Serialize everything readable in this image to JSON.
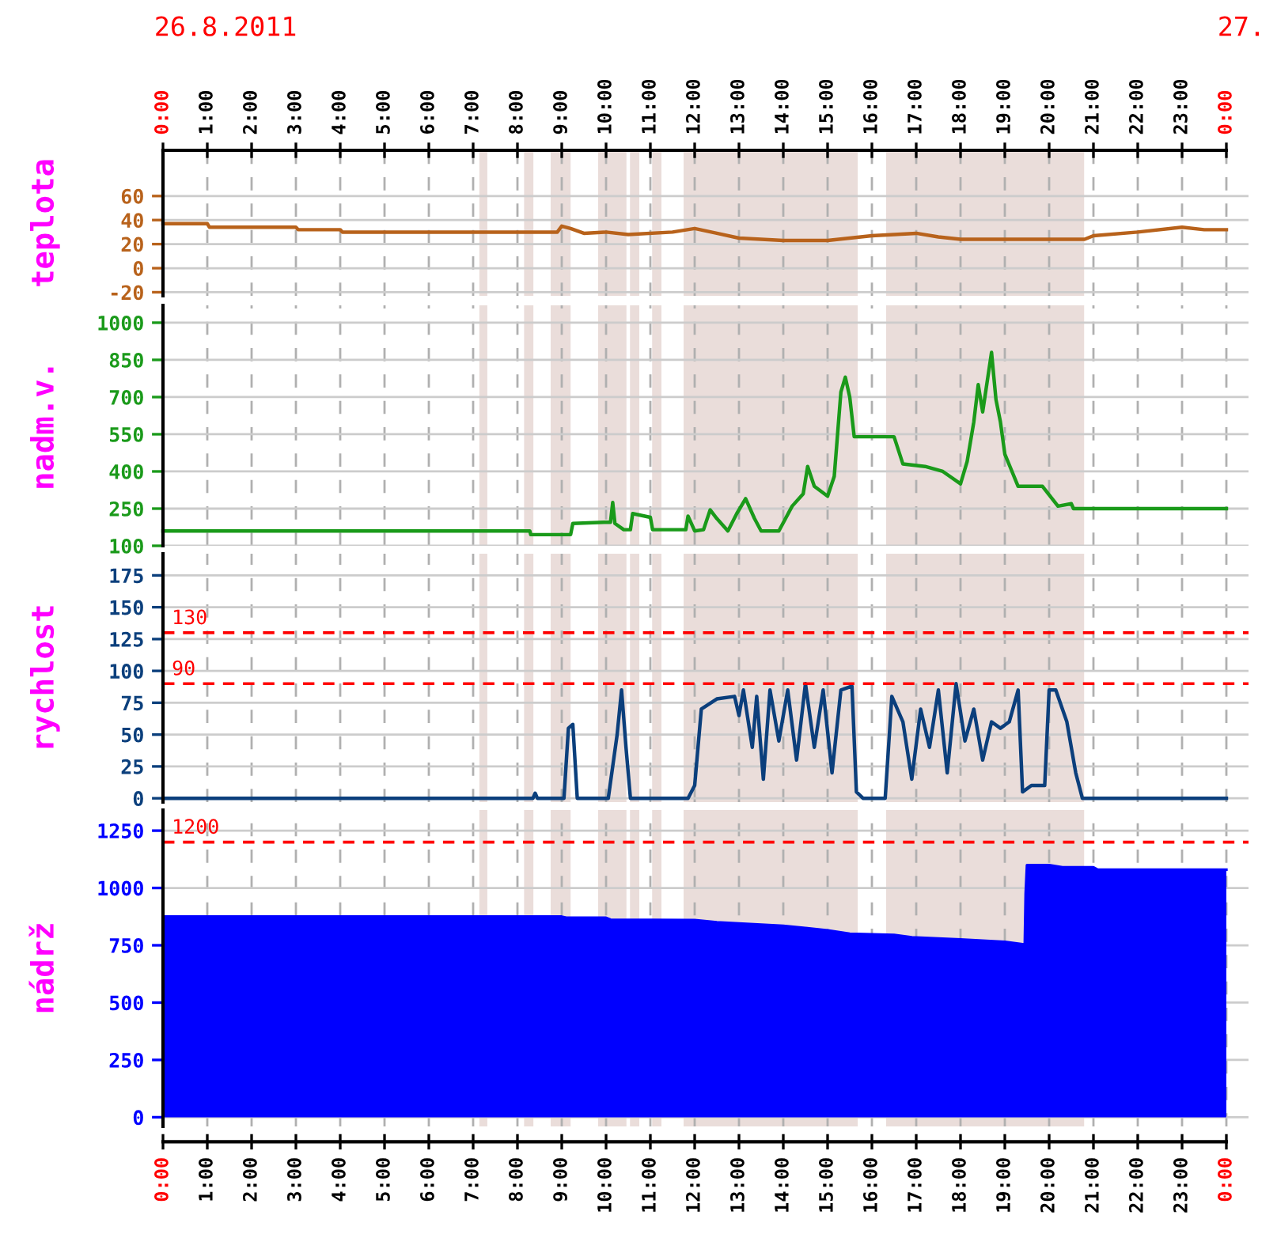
{
  "chart_data": [
    {
      "type": "line",
      "ylabel": "teplota",
      "annotations": [
        "26.8.2011",
        "27."
      ],
      "grid": true,
      "tick_labels": "y",
      "xlim": [
        0,
        24.5
      ],
      "xticks": [
        0,
        1,
        2,
        3,
        4,
        5,
        6,
        7,
        8,
        9,
        10,
        11,
        12,
        13,
        14,
        15,
        16,
        17,
        18,
        19,
        20,
        21,
        22,
        23,
        24
      ],
      "x2lim": [
        0,
        24.5
      ],
      "x2ticks": [
        {
          "value": 0,
          "label": "0:00"
        },
        {
          "value": 1,
          "label": "1:00"
        },
        {
          "value": 2,
          "label": "2:00"
        },
        {
          "value": 3,
          "label": "3:00"
        },
        {
          "value": 4,
          "label": "4:00"
        },
        {
          "value": 5,
          "label": "5:00"
        },
        {
          "value": 6,
          "label": "6:00"
        },
        {
          "value": 7,
          "label": "7:00"
        },
        {
          "value": 8,
          "label": "8:00"
        },
        {
          "value": 9,
          "label": "9:00"
        },
        {
          "value": 10,
          "label": "10:00"
        },
        {
          "value": 11,
          "label": "11:00"
        },
        {
          "value": 12,
          "label": "12:00"
        },
        {
          "value": 13,
          "label": "13:00"
        },
        {
          "value": 14,
          "label": "14:00"
        },
        {
          "value": 15,
          "label": "15:00"
        },
        {
          "value": 16,
          "label": "16:00"
        },
        {
          "value": 17,
          "label": "17:00"
        },
        {
          "value": 18,
          "label": "18:00"
        },
        {
          "value": 19,
          "label": "19:00"
        },
        {
          "value": 20,
          "label": "20:00"
        },
        {
          "value": 21,
          "label": "21:00"
        },
        {
          "value": 22,
          "label": "22:00"
        },
        {
          "value": 23,
          "label": "23:00"
        },
        {
          "value": 24,
          "label": "0:00"
        }
      ],
      "ylim": [
        -23,
        98
      ],
      "yticks": [
        -20,
        0,
        20,
        40,
        60
      ],
      "bands": [
        {
          "axis": "x",
          "from": 7.14,
          "to": 7.32,
          "color": "#eaddda"
        },
        {
          "axis": "x",
          "from": 8.15,
          "to": 8.36,
          "color": "#eaddda"
        },
        {
          "axis": "x",
          "from": 8.75,
          "to": 9.2,
          "color": "#eaddda"
        },
        {
          "axis": "x",
          "from": 9.82,
          "to": 10.46,
          "color": "#eaddda"
        },
        {
          "axis": "x",
          "from": 10.54,
          "to": 10.75,
          "color": "#eaddda"
        },
        {
          "axis": "x",
          "from": 11.04,
          "to": 11.25,
          "color": "#eaddda"
        },
        {
          "axis": "x",
          "from": 11.75,
          "to": 15.68,
          "color": "#eaddda"
        },
        {
          "axis": "x",
          "from": 16.32,
          "to": 20.79,
          "color": "#eaddda"
        }
      ],
      "series": [
        {
          "color": "#b8621b",
          "x": [
            0,
            1,
            1.05,
            3,
            3.05,
            4,
            4.05,
            8.9,
            9.0,
            9.2,
            9.5,
            10,
            10.5,
            11.5,
            12.0,
            12.5,
            13,
            14,
            15,
            15.5,
            16,
            17,
            17.5,
            18,
            20.8,
            21,
            22,
            23,
            23.5,
            24
          ],
          "values": [
            37,
            37,
            34,
            34,
            32,
            32,
            30,
            30,
            35,
            33,
            29,
            30,
            28,
            30,
            33,
            29,
            25,
            23,
            23,
            25,
            27,
            29,
            26,
            24,
            24,
            27,
            30,
            34,
            32,
            32
          ]
        }
      ]
    },
    {
      "type": "line",
      "ylabel": "nadm.v.",
      "grid": true,
      "tick_labels": "y",
      "xlim": [
        0,
        24.5
      ],
      "xticks": [
        0,
        1,
        2,
        3,
        4,
        5,
        6,
        7,
        8,
        9,
        10,
        11,
        12,
        13,
        14,
        15,
        16,
        17,
        18,
        19,
        20,
        21,
        22,
        23,
        24
      ],
      "ylim": [
        100,
        1070
      ],
      "yticks": [
        100,
        250,
        400,
        550,
        700,
        850,
        1000
      ],
      "bands": [
        {
          "axis": "x",
          "from": 7.14,
          "to": 7.32,
          "color": "#eaddda"
        },
        {
          "axis": "x",
          "from": 8.15,
          "to": 8.36,
          "color": "#eaddda"
        },
        {
          "axis": "x",
          "from": 8.75,
          "to": 9.2,
          "color": "#eaddda"
        },
        {
          "axis": "x",
          "from": 9.82,
          "to": 10.46,
          "color": "#eaddda"
        },
        {
          "axis": "x",
          "from": 10.54,
          "to": 10.75,
          "color": "#eaddda"
        },
        {
          "axis": "x",
          "from": 11.04,
          "to": 11.25,
          "color": "#eaddda"
        },
        {
          "axis": "x",
          "from": 11.75,
          "to": 15.68,
          "color": "#eaddda"
        },
        {
          "axis": "x",
          "from": 16.32,
          "to": 20.79,
          "color": "#eaddda"
        }
      ],
      "series": [
        {
          "color": "#1a9a1a",
          "x": [
            0,
            8.28,
            8.3,
            9.2,
            9.25,
            9.95,
            10.1,
            10.15,
            10.2,
            10.4,
            10.55,
            10.6,
            11.0,
            11.05,
            11.8,
            11.85,
            12.0,
            12.2,
            12.35,
            12.5,
            12.75,
            12.95,
            13.15,
            13.35,
            13.5,
            13.9,
            14.2,
            14.45,
            14.55,
            14.7,
            15.0,
            15.15,
            15.3,
            15.4,
            15.5,
            15.6,
            16.5,
            16.7,
            17.2,
            17.6,
            18.0,
            18.15,
            18.3,
            18.4,
            18.5,
            18.7,
            18.8,
            18.9,
            19.0,
            19.3,
            19.85,
            20.2,
            20.5,
            20.55,
            24
          ],
          "values": [
            160,
            160,
            145,
            145,
            190,
            195,
            195,
            275,
            190,
            165,
            165,
            230,
            215,
            165,
            165,
            220,
            160,
            165,
            245,
            210,
            160,
            230,
            290,
            210,
            160,
            160,
            260,
            310,
            420,
            340,
            300,
            380,
            720,
            780,
            700,
            540,
            540,
            430,
            420,
            400,
            350,
            440,
            600,
            750,
            640,
            880,
            690,
            600,
            470,
            340,
            340,
            260,
            270,
            250,
            250
          ]
        }
      ]
    },
    {
      "type": "line",
      "ylabel": "rychlost",
      "grid": true,
      "tick_labels": "y",
      "xlim": [
        0,
        24.5
      ],
      "xticks": [
        0,
        1,
        2,
        3,
        4,
        5,
        6,
        7,
        8,
        9,
        10,
        11,
        12,
        13,
        14,
        15,
        16,
        17,
        18,
        19,
        20,
        21,
        22,
        23,
        24
      ],
      "ylim": [
        -3,
        192
      ],
      "yticks": [
        0,
        25,
        50,
        75,
        100,
        125,
        150,
        175
      ],
      "ref_lines": [
        {
          "axis": "y",
          "value": 130,
          "label": "130",
          "color": "#ff0000",
          "line_style": "dashed"
        },
        {
          "axis": "y",
          "value": 90,
          "label": "90",
          "color": "#ff0000",
          "line_style": "dashed"
        }
      ],
      "bands": [
        {
          "axis": "x",
          "from": 7.14,
          "to": 7.32,
          "color": "#eaddda"
        },
        {
          "axis": "x",
          "from": 8.15,
          "to": 8.36,
          "color": "#eaddda"
        },
        {
          "axis": "x",
          "from": 8.75,
          "to": 9.2,
          "color": "#eaddda"
        },
        {
          "axis": "x",
          "from": 9.82,
          "to": 10.46,
          "color": "#eaddda"
        },
        {
          "axis": "x",
          "from": 10.54,
          "to": 10.75,
          "color": "#eaddda"
        },
        {
          "axis": "x",
          "from": 11.04,
          "to": 11.25,
          "color": "#eaddda"
        },
        {
          "axis": "x",
          "from": 11.75,
          "to": 15.68,
          "color": "#eaddda"
        },
        {
          "axis": "x",
          "from": 16.32,
          "to": 20.79,
          "color": "#eaddda"
        }
      ],
      "series": [
        {
          "color": "#0b3f7c",
          "x": [
            0,
            8.35,
            8.4,
            8.45,
            9.05,
            9.15,
            9.25,
            9.35,
            10.05,
            10.25,
            10.35,
            10.45,
            10.55,
            11.85,
            12.0,
            12.15,
            12.5,
            12.9,
            13.0,
            13.1,
            13.3,
            13.4,
            13.55,
            13.7,
            13.9,
            14.1,
            14.3,
            14.5,
            14.7,
            14.9,
            15.1,
            15.3,
            15.55,
            15.65,
            15.8,
            16.3,
            16.45,
            16.7,
            16.9,
            17.1,
            17.3,
            17.5,
            17.7,
            17.9,
            18.1,
            18.3,
            18.5,
            18.7,
            18.9,
            19.1,
            19.3,
            19.4,
            19.6,
            19.9,
            20.0,
            20.15,
            20.4,
            20.6,
            20.75,
            24
          ],
          "values": [
            0,
            0,
            4,
            0,
            0,
            55,
            58,
            0,
            0,
            50,
            85,
            40,
            0,
            0,
            10,
            70,
            78,
            80,
            65,
            85,
            40,
            80,
            15,
            85,
            45,
            85,
            30,
            90,
            40,
            85,
            20,
            85,
            88,
            5,
            0,
            0,
            80,
            60,
            15,
            70,
            40,
            85,
            20,
            90,
            45,
            70,
            30,
            60,
            55,
            60,
            85,
            5,
            10,
            10,
            85,
            85,
            60,
            20,
            0,
            0
          ]
        }
      ]
    },
    {
      "type": "area",
      "ylabel": "nádrž",
      "grid": true,
      "xlim": [
        0,
        24.5
      ],
      "xticks": [
        {
          "value": 0,
          "label": "0:00"
        },
        {
          "value": 1,
          "label": "1:00"
        },
        {
          "value": 2,
          "label": "2:00"
        },
        {
          "value": 3,
          "label": "3:00"
        },
        {
          "value": 4,
          "label": "4:00"
        },
        {
          "value": 5,
          "label": "5:00"
        },
        {
          "value": 6,
          "label": "6:00"
        },
        {
          "value": 7,
          "label": "7:00"
        },
        {
          "value": 8,
          "label": "8:00"
        },
        {
          "value": 9,
          "label": "9:00"
        },
        {
          "value": 10,
          "label": "10:00"
        },
        {
          "value": 11,
          "label": "11:00"
        },
        {
          "value": 12,
          "label": "12:00"
        },
        {
          "value": 13,
          "label": "13:00"
        },
        {
          "value": 14,
          "label": "14:00"
        },
        {
          "value": 15,
          "label": "15:00"
        },
        {
          "value": 16,
          "label": "16:00"
        },
        {
          "value": 17,
          "label": "17:00"
        },
        {
          "value": 18,
          "label": "18:00"
        },
        {
          "value": 19,
          "label": "19:00"
        },
        {
          "value": 20,
          "label": "20:00"
        },
        {
          "value": 21,
          "label": "21:00"
        },
        {
          "value": 22,
          "label": "22:00"
        },
        {
          "value": 23,
          "label": "23:00"
        },
        {
          "value": 24,
          "label": "0:00"
        }
      ],
      "ylim": [
        -40,
        1340
      ],
      "yticks": [
        0,
        250,
        500,
        750,
        1000,
        1250
      ],
      "ref_lines": [
        {
          "axis": "y",
          "value": 1200,
          "label": "1200",
          "color": "#ff0000",
          "line_style": "dashed"
        }
      ],
      "bands": [
        {
          "axis": "x",
          "from": 7.14,
          "to": 7.32,
          "color": "#eaddda"
        },
        {
          "axis": "x",
          "from": 8.15,
          "to": 8.36,
          "color": "#eaddda"
        },
        {
          "axis": "x",
          "from": 8.75,
          "to": 9.2,
          "color": "#eaddda"
        },
        {
          "axis": "x",
          "from": 9.82,
          "to": 10.46,
          "color": "#eaddda"
        },
        {
          "axis": "x",
          "from": 10.54,
          "to": 10.75,
          "color": "#eaddda"
        },
        {
          "axis": "x",
          "from": 11.04,
          "to": 11.25,
          "color": "#eaddda"
        },
        {
          "axis": "x",
          "from": 11.75,
          "to": 15.68,
          "color": "#eaddda"
        },
        {
          "axis": "x",
          "from": 16.32,
          "to": 20.79,
          "color": "#eaddda"
        }
      ],
      "series": [
        {
          "color": "#0000ff",
          "x": [
            0,
            9.0,
            9.1,
            10.0,
            10.1,
            12.0,
            12.5,
            13.5,
            14.0,
            14.5,
            15.0,
            15.5,
            16.5,
            16.9,
            18.0,
            19.0,
            19.4,
            19.45,
            19.47,
            19.5,
            20.0,
            20.3,
            21.0,
            21.1,
            24
          ],
          "values": [
            875,
            875,
            870,
            870,
            862,
            860,
            850,
            840,
            835,
            825,
            815,
            800,
            795,
            785,
            775,
            765,
            755,
            750,
            975,
            1100,
            1100,
            1090,
            1090,
            1080,
            1080
          ]
        }
      ]
    }
  ]
}
